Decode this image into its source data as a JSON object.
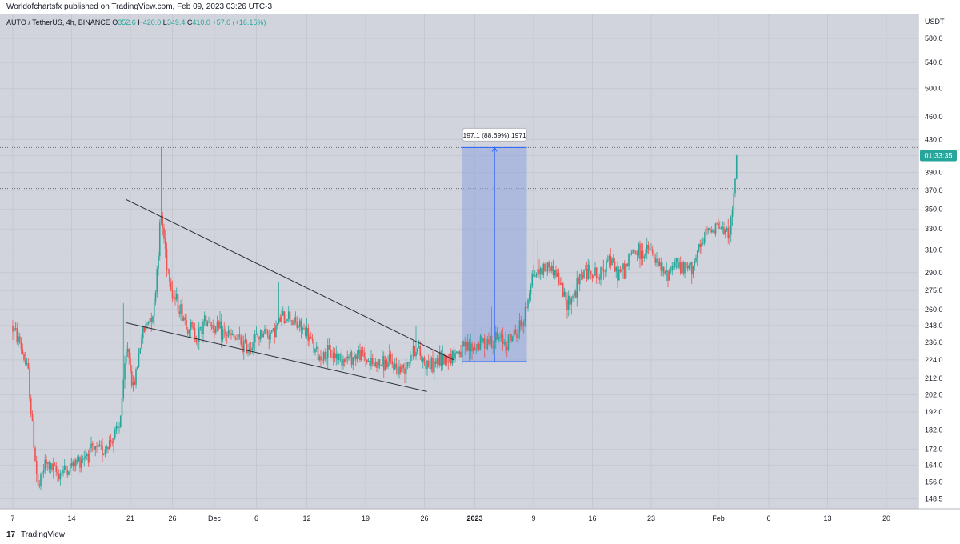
{
  "header": {
    "published": "Worldofchartsfx published on TradingView.com, Feb 09, 2023 03:26 UTC-3"
  },
  "symbol_bar": {
    "symbol": "AUTO / TetherUS, 4h, BINANCE",
    "o_label": "O",
    "o_value": "352.6",
    "h_label": "H",
    "h_value": "420.0",
    "l_label": "L",
    "l_value": "349.4",
    "c_label": "C",
    "c_value": "410.0",
    "change": "+57.0 (+16.15%)"
  },
  "currency": "USDT",
  "countdown": "01:33:35",
  "measure_label": "197.1 (88.69%) 1971",
  "footer": {
    "brand": "TradingView",
    "logo_icon": "tradingview-logo-icon"
  },
  "colors": {
    "background": "#d1d4dc",
    "up": "#26a69a",
    "down": "#ef5350",
    "measure_fill": "#90a4e0",
    "measure_line": "#2962ff",
    "trendline": "#2a2e39"
  },
  "chart_data": {
    "type": "candlestick",
    "scale": "log",
    "y_ticks": [
      "148.5",
      "156.0",
      "164.0",
      "172.0",
      "182.0",
      "192.0",
      "202.0",
      "212.0",
      "224.0",
      "236.0",
      "248.0",
      "260.0",
      "275.0",
      "290.0",
      "310.0",
      "330.0",
      "350.0",
      "370.0",
      "390.0",
      "410.0",
      "430.0",
      "460.0",
      "500.0",
      "540.0",
      "580.0",
      "USDT"
    ],
    "ylim": [
      146,
      620
    ],
    "x_ticks": [
      "7",
      "14",
      "21",
      "26",
      "Dec",
      "6",
      "12",
      "19",
      "26",
      "2023",
      "9",
      "16",
      "23",
      "Feb",
      "6",
      "13",
      "20"
    ],
    "anchors": [
      {
        "day": 0,
        "price": 248
      },
      {
        "day": 1,
        "price": 236
      },
      {
        "day": 2,
        "price": 215
      },
      {
        "day": 2.6,
        "price": 178
      },
      {
        "day": 3.2,
        "price": 152
      },
      {
        "day": 4,
        "price": 165
      },
      {
        "day": 5.5,
        "price": 160
      },
      {
        "day": 7,
        "price": 163
      },
      {
        "day": 9,
        "price": 170
      },
      {
        "day": 11,
        "price": 172
      },
      {
        "day": 12.8,
        "price": 182
      },
      {
        "day": 13.8,
        "price": 235
      },
      {
        "day": 14.5,
        "price": 205
      },
      {
        "day": 15.5,
        "price": 240
      },
      {
        "day": 17,
        "price": 262
      },
      {
        "day": 17.8,
        "price": 345
      },
      {
        "day": 18.5,
        "price": 300
      },
      {
        "day": 19.2,
        "price": 272
      },
      {
        "day": 20,
        "price": 262
      },
      {
        "day": 21,
        "price": 248
      },
      {
        "day": 22.2,
        "price": 240
      },
      {
        "day": 23.2,
        "price": 255
      },
      {
        "day": 24.2,
        "price": 246
      },
      {
        "day": 25.5,
        "price": 242
      },
      {
        "day": 27,
        "price": 237
      },
      {
        "day": 28,
        "price": 232
      },
      {
        "day": 29,
        "price": 238
      },
      {
        "day": 30,
        "price": 244
      },
      {
        "day": 31,
        "price": 242
      },
      {
        "day": 32,
        "price": 252
      },
      {
        "day": 33,
        "price": 256
      },
      {
        "day": 34,
        "price": 248
      },
      {
        "day": 35,
        "price": 244
      },
      {
        "day": 36,
        "price": 232
      },
      {
        "day": 36.5,
        "price": 226
      },
      {
        "day": 38,
        "price": 228
      },
      {
        "day": 40,
        "price": 225
      },
      {
        "day": 41.5,
        "price": 228
      },
      {
        "day": 43,
        "price": 221
      },
      {
        "day": 45,
        "price": 222
      },
      {
        "day": 46.5,
        "price": 217
      },
      {
        "day": 47.5,
        "price": 228
      },
      {
        "day": 48.2,
        "price": 232
      },
      {
        "day": 49,
        "price": 224
      },
      {
        "day": 50,
        "price": 220
      },
      {
        "day": 51,
        "price": 224
      },
      {
        "day": 52,
        "price": 226
      },
      {
        "day": 53,
        "price": 229
      },
      {
        "day": 54,
        "price": 231
      },
      {
        "day": 55,
        "price": 232
      },
      {
        "day": 56,
        "price": 236
      },
      {
        "day": 57,
        "price": 238
      },
      {
        "day": 58,
        "price": 238
      },
      {
        "day": 59,
        "price": 237
      },
      {
        "day": 60,
        "price": 242
      },
      {
        "day": 61,
        "price": 252
      },
      {
        "day": 62,
        "price": 288
      },
      {
        "day": 63,
        "price": 292
      },
      {
        "day": 64,
        "price": 296
      },
      {
        "day": 65,
        "price": 288
      },
      {
        "day": 66,
        "price": 266
      },
      {
        "day": 67,
        "price": 272
      },
      {
        "day": 68,
        "price": 290
      },
      {
        "day": 69,
        "price": 292
      },
      {
        "day": 70,
        "price": 285
      },
      {
        "day": 71,
        "price": 305
      },
      {
        "day": 72,
        "price": 290
      },
      {
        "day": 73,
        "price": 292
      },
      {
        "day": 74,
        "price": 310
      },
      {
        "day": 75,
        "price": 306
      },
      {
        "day": 76,
        "price": 310
      },
      {
        "day": 77,
        "price": 295
      },
      {
        "day": 78,
        "price": 287
      },
      {
        "day": 79,
        "price": 300
      },
      {
        "day": 80,
        "price": 292
      },
      {
        "day": 81,
        "price": 296
      },
      {
        "day": 82,
        "price": 310
      },
      {
        "day": 83,
        "price": 330
      },
      {
        "day": 84,
        "price": 335
      },
      {
        "day": 85,
        "price": 325
      },
      {
        "day": 85.8,
        "price": 338
      },
      {
        "day": 86.3,
        "price": 405
      }
    ],
    "spikes": [
      {
        "day": 17.6,
        "high": 420
      },
      {
        "day": 13.2,
        "high": 265
      },
      {
        "day": 31.6,
        "high": 282
      },
      {
        "day": 36.3,
        "low": 214
      },
      {
        "day": 48,
        "high": 248
      },
      {
        "day": 57,
        "high": 262
      },
      {
        "day": 62.5,
        "high": 320
      },
      {
        "day": 46.8,
        "low": 209
      }
    ],
    "trendlines": [
      {
        "from": {
          "day": 13.5,
          "price": 360
        },
        "to": {
          "day": 52.5,
          "price": 224
        }
      },
      {
        "from": {
          "day": 13.5,
          "price": 250
        },
        "to": {
          "day": 49.3,
          "price": 204
        }
      }
    ],
    "measure": {
      "start_day": 53.5,
      "end_day": 61.2,
      "low": 222.9,
      "high": 420
    },
    "dotted_levels": [
      420,
      372
    ],
    "last_price": 410.0,
    "last_day": 86.4
  }
}
